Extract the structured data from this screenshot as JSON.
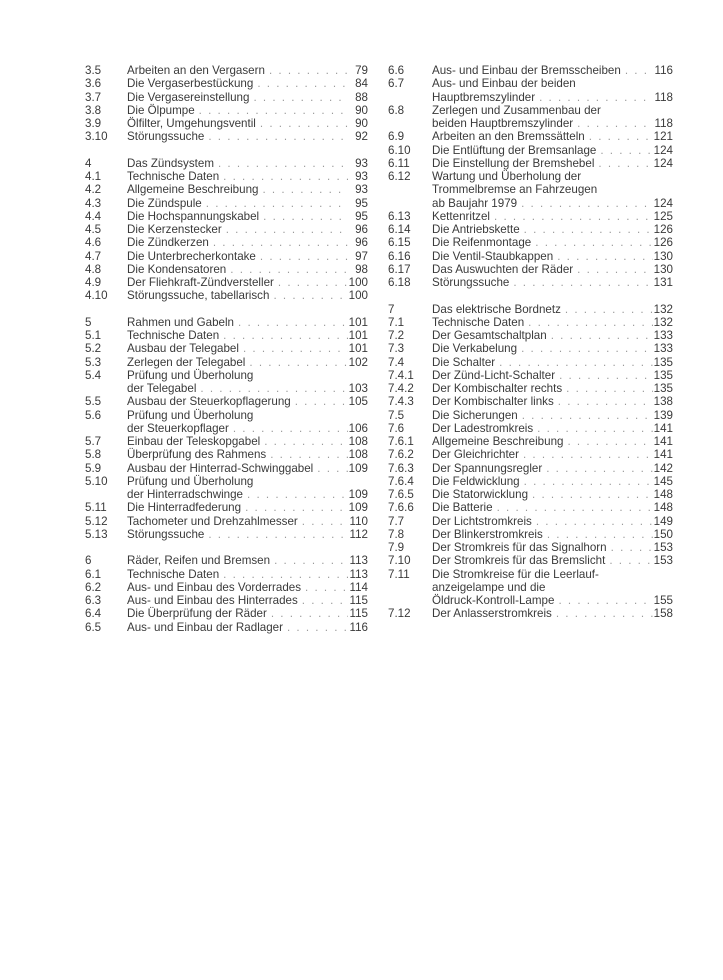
{
  "toc": {
    "left": [
      {
        "num": "3.5",
        "lines": [
          "Arbeiten an den Vergasern"
        ],
        "page": "79"
      },
      {
        "num": "3.6",
        "lines": [
          "Die Vergaserbestückung"
        ],
        "page": "84"
      },
      {
        "num": "3.7",
        "lines": [
          "Die Vergasereinstellung"
        ],
        "page": "88"
      },
      {
        "num": "3.8",
        "lines": [
          "Die Ölpumpe"
        ],
        "page": "90"
      },
      {
        "num": "3.9",
        "lines": [
          "Ölfilter, Umgehungsventil"
        ],
        "page": "90"
      },
      {
        "num": "3.10",
        "lines": [
          "Störungssuche"
        ],
        "page": "92"
      },
      {
        "gap": true
      },
      {
        "num": "4",
        "lines": [
          "Das Zündsystem"
        ],
        "page": "93"
      },
      {
        "num": "4.1",
        "lines": [
          "Technische Daten"
        ],
        "page": "93"
      },
      {
        "num": "4.2",
        "lines": [
          "Allgemeine Beschreibung"
        ],
        "page": "93"
      },
      {
        "num": "4.3",
        "lines": [
          "Die Zündspule"
        ],
        "page": "95"
      },
      {
        "num": "4.4",
        "lines": [
          "Die Hochspannungskabel"
        ],
        "page": "95"
      },
      {
        "num": "4.5",
        "lines": [
          "Die Kerzenstecker"
        ],
        "page": "96"
      },
      {
        "num": "4.6",
        "lines": [
          "Die Zündkerzen"
        ],
        "page": "96"
      },
      {
        "num": "4.7",
        "lines": [
          "Die Unterbrecherkontake"
        ],
        "page": "97"
      },
      {
        "num": "4.8",
        "lines": [
          "Die Kondensatoren"
        ],
        "page": "98"
      },
      {
        "num": "4.9",
        "lines": [
          "Der Fliehkraft-Zündversteller"
        ],
        "page": "100"
      },
      {
        "num": "4.10",
        "lines": [
          "Störungssuche, tabellarisch"
        ],
        "page": "100"
      },
      {
        "gap": true
      },
      {
        "num": "5",
        "lines": [
          "Rahmen und Gabeln"
        ],
        "page": "101"
      },
      {
        "num": "5.1",
        "lines": [
          "Technische Daten"
        ],
        "page": "101"
      },
      {
        "num": "5.2",
        "lines": [
          "Ausbau der Telegabel"
        ],
        "page": "101"
      },
      {
        "num": "5.3",
        "lines": [
          "Zerlegen der Telegabel"
        ],
        "page": "102"
      },
      {
        "num": "5.4",
        "lines": [
          "Prüfung und Überholung",
          "der Telegabel"
        ],
        "page": "103"
      },
      {
        "num": "5.5",
        "lines": [
          "Ausbau der Steuerkopflagerung"
        ],
        "page": "105"
      },
      {
        "num": "5.6",
        "lines": [
          "Prüfung und Überholung",
          "der Steuerkopflager"
        ],
        "page": "106"
      },
      {
        "num": "5.7",
        "lines": [
          "Einbau der Teleskopgabel"
        ],
        "page": "108"
      },
      {
        "num": "5.8",
        "lines": [
          "Überprüfung des Rahmens"
        ],
        "page": "108"
      },
      {
        "num": "5.9",
        "lines": [
          "Ausbau der Hinterrad-Schwinggabel"
        ],
        "page": "109"
      },
      {
        "num": "5.10",
        "lines": [
          "Prüfung und Überholung",
          "der Hinterradschwinge"
        ],
        "page": "109"
      },
      {
        "num": "5.11",
        "lines": [
          "Die Hinterradfederung"
        ],
        "page": "109"
      },
      {
        "num": "5.12",
        "lines": [
          "Tachometer und Drehzahlmesser"
        ],
        "page": "110"
      },
      {
        "num": "5.13",
        "lines": [
          "Störungssuche"
        ],
        "page": "112"
      },
      {
        "gap": true
      },
      {
        "num": "6",
        "lines": [
          "Räder, Reifen und Bremsen"
        ],
        "page": "113"
      },
      {
        "num": "6.1",
        "lines": [
          "Technische Daten"
        ],
        "page": "113"
      },
      {
        "num": "6.2",
        "lines": [
          "Aus- und Einbau des Vorderrades"
        ],
        "page": "114"
      },
      {
        "num": "6.3",
        "lines": [
          "Aus- und Einbau des Hinterrades"
        ],
        "page": "115"
      },
      {
        "num": "6.4",
        "lines": [
          "Die Überprüfung der Räder"
        ],
        "page": "115"
      },
      {
        "num": "6.5",
        "lines": [
          "Aus- und Einbau der Radlager"
        ],
        "page": "116"
      }
    ],
    "right": [
      {
        "num": "6.6",
        "lines": [
          "Aus- und Einbau der Bremsscheiben"
        ],
        "page": "116"
      },
      {
        "num": "6.7",
        "lines": [
          "Aus- und Einbau der beiden",
          "Hauptbremszylinder"
        ],
        "page": "118"
      },
      {
        "num": "6.8",
        "lines": [
          "Zerlegen und Zusammenbau der",
          "beiden Hauptbremszylinder"
        ],
        "page": "118"
      },
      {
        "num": "6.9",
        "lines": [
          "Arbeiten an den Bremssätteln"
        ],
        "page": "121"
      },
      {
        "num": "6.10",
        "lines": [
          "Die Entlüftung der Bremsanlage"
        ],
        "page": "124"
      },
      {
        "num": "6.11",
        "lines": [
          "Die Einstellung der Bremshebel"
        ],
        "page": "124"
      },
      {
        "num": "6.12",
        "lines": [
          "Wartung und Überholung der",
          "Trommelbremse an Fahrzeugen",
          "ab Baujahr 1979"
        ],
        "page": "124"
      },
      {
        "num": "6.13",
        "lines": [
          "Kettenritzel"
        ],
        "page": "125"
      },
      {
        "num": "6.14",
        "lines": [
          "Die Antriebskette"
        ],
        "page": "126"
      },
      {
        "num": "6.15",
        "lines": [
          "Die Reifenmontage"
        ],
        "page": "126"
      },
      {
        "num": "6.16",
        "lines": [
          "Die Ventil-Staubkappen"
        ],
        "page": "130"
      },
      {
        "num": "6.17",
        "lines": [
          "Das Auswuchten der Räder"
        ],
        "page": "130"
      },
      {
        "num": "6.18",
        "lines": [
          "Störungssuche"
        ],
        "page": "131"
      },
      {
        "gap": true
      },
      {
        "num": "7",
        "lines": [
          "Das elektrische Bordnetz"
        ],
        "page": "132"
      },
      {
        "num": "7.1",
        "lines": [
          "Technische Daten"
        ],
        "page": "132"
      },
      {
        "num": "7.2",
        "lines": [
          "Der Gesamtschaltplan"
        ],
        "page": "133"
      },
      {
        "num": "7.3",
        "lines": [
          "Die Verkabelung"
        ],
        "page": "133"
      },
      {
        "num": "7.4",
        "lines": [
          "Die Schalter"
        ],
        "page": "135"
      },
      {
        "num": "7.4.1",
        "lines": [
          "Der Zünd-Licht-Schalter"
        ],
        "page": "135"
      },
      {
        "num": "7.4.2",
        "lines": [
          "Der Kombischalter rechts"
        ],
        "page": "135"
      },
      {
        "num": "7.4.3",
        "lines": [
          "Der Kombischalter links"
        ],
        "page": "138"
      },
      {
        "num": "7.5",
        "lines": [
          "Die Sicherungen"
        ],
        "page": "139"
      },
      {
        "num": "7.6",
        "lines": [
          "Der Ladestromkreis"
        ],
        "page": "141"
      },
      {
        "num": "7.6.1",
        "lines": [
          "Allgemeine Beschreibung"
        ],
        "page": "141"
      },
      {
        "num": "7.6.2",
        "lines": [
          "Der Gleichrichter"
        ],
        "page": "141"
      },
      {
        "num": "7.6.3",
        "lines": [
          "Der Spannungsregler"
        ],
        "page": "142"
      },
      {
        "num": "7.6.4",
        "lines": [
          "Die Feldwicklung"
        ],
        "page": "145"
      },
      {
        "num": "7.6.5",
        "lines": [
          "Die Statorwicklung"
        ],
        "page": "148"
      },
      {
        "num": "7.6.6",
        "lines": [
          "Die Batterie"
        ],
        "page": "148"
      },
      {
        "num": "7.7",
        "lines": [
          "Der Lichtstromkreis"
        ],
        "page": "149"
      },
      {
        "num": "7.8",
        "lines": [
          "Der Blinkerstromkreis"
        ],
        "page": "150"
      },
      {
        "num": "7.9",
        "lines": [
          "Der Stromkreis für das Signalhorn"
        ],
        "page": "153"
      },
      {
        "num": "7.10",
        "lines": [
          "Der Stromkreis für das Bremslicht"
        ],
        "page": "153"
      },
      {
        "num": "7.11",
        "lines": [
          "Die Stromkreise für die Leerlauf-",
          "anzeigelampe und die",
          "Öldruck-Kontroll-Lampe"
        ],
        "page": "155"
      },
      {
        "num": "7.12",
        "lines": [
          "Der Anlasserstromkreis"
        ],
        "page": "158"
      }
    ]
  }
}
